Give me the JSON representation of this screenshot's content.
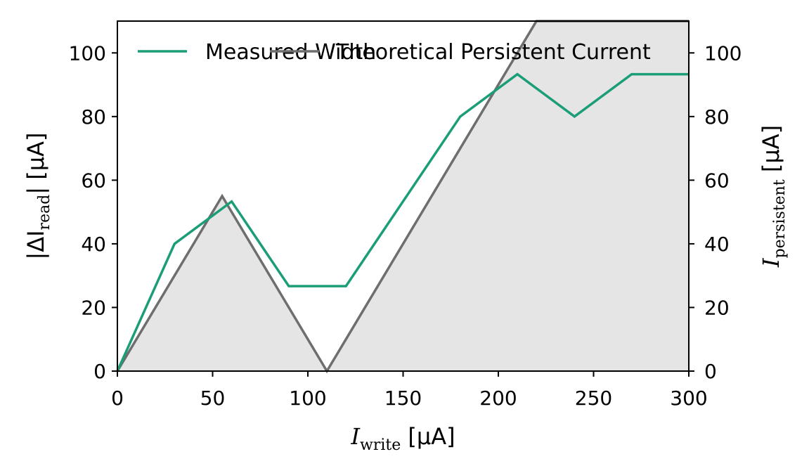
{
  "chart_data": {
    "type": "line",
    "x_range": [
      0,
      300
    ],
    "y_range": [
      0,
      110
    ],
    "x_ticks": [
      0,
      50,
      100,
      150,
      200,
      250,
      300
    ],
    "y_ticks": [
      0,
      20,
      40,
      60,
      80,
      100
    ],
    "xlabel": {
      "main": "I",
      "sub": "write",
      "unit": " [μA]"
    },
    "ylabel_left": {
      "prefix": "|ΔI",
      "sub": "read",
      "suffix": "| [μA]"
    },
    "ylabel_right": {
      "main": "I",
      "sub": "persistent",
      "unit": " [μA]"
    },
    "grid": false,
    "legend_position": "top",
    "series": [
      {
        "name": "Measured Width",
        "color": "#1b9e77",
        "axis": "left",
        "x": [
          0,
          30,
          60,
          90,
          120,
          180,
          210,
          240,
          270,
          300
        ],
        "y": [
          0,
          40,
          53.3,
          26.7,
          26.7,
          80,
          93.3,
          80,
          93.3,
          93.3
        ]
      },
      {
        "name": "Theoretical Persistent Current",
        "color": "#6e6e6e",
        "fill": "#e5e5e5",
        "axis": "right",
        "x": [
          0,
          55,
          110,
          220,
          300
        ],
        "y": [
          0,
          55,
          0,
          110,
          110
        ]
      }
    ]
  }
}
